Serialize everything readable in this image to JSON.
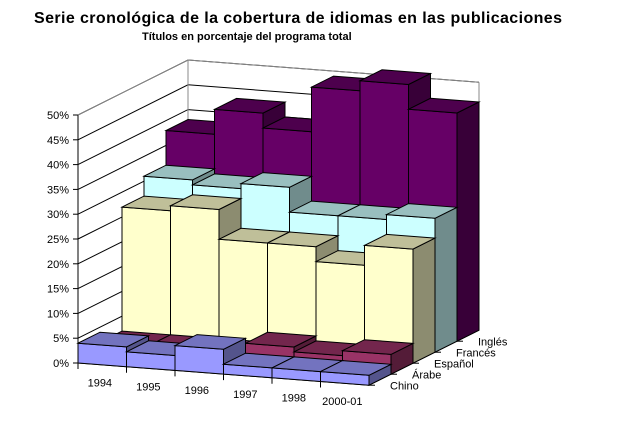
{
  "chart_data": {
    "type": "bar",
    "subtype": "3d-column",
    "title": "Serie cronológica de la cobertura de idiomas en las publicaciones",
    "subtitle": "Títulos en porcentaje del programa total",
    "xlabel": "",
    "ylabel": "",
    "ylim": [
      0,
      0.5
    ],
    "yticks": [
      "0%",
      "5%",
      "10%",
      "15%",
      "20%",
      "25%",
      "30%",
      "35%",
      "40%",
      "45%",
      "50%"
    ],
    "categories": [
      "1994",
      "1995",
      "1996",
      "1997",
      "1998",
      "2000-01"
    ],
    "series": [
      {
        "name": "Inglés",
        "color": "#660066",
        "values": [
          0.38,
          0.43,
          0.4,
          0.49,
          0.51,
          0.46
        ]
      },
      {
        "name": "Francés",
        "color": "#CCFFFF",
        "values": [
          0.31,
          0.3,
          0.31,
          0.26,
          0.26,
          0.27
        ]
      },
      {
        "name": "Español",
        "color": "#FFFFCC",
        "values": [
          0.27,
          0.28,
          0.22,
          0.22,
          0.19,
          0.23
        ]
      },
      {
        "name": "Árabe",
        "color": "#993366",
        "values": [
          0.02,
          0.02,
          0.02,
          0.04,
          0.03,
          0.04
        ]
      },
      {
        "name": "Chino",
        "color": "#9999FF",
        "values": [
          0.04,
          0.03,
          0.05,
          0.02,
          0.02,
          0.02
        ]
      }
    ],
    "grid": true,
    "legend_position": "depth-axis-labels"
  }
}
